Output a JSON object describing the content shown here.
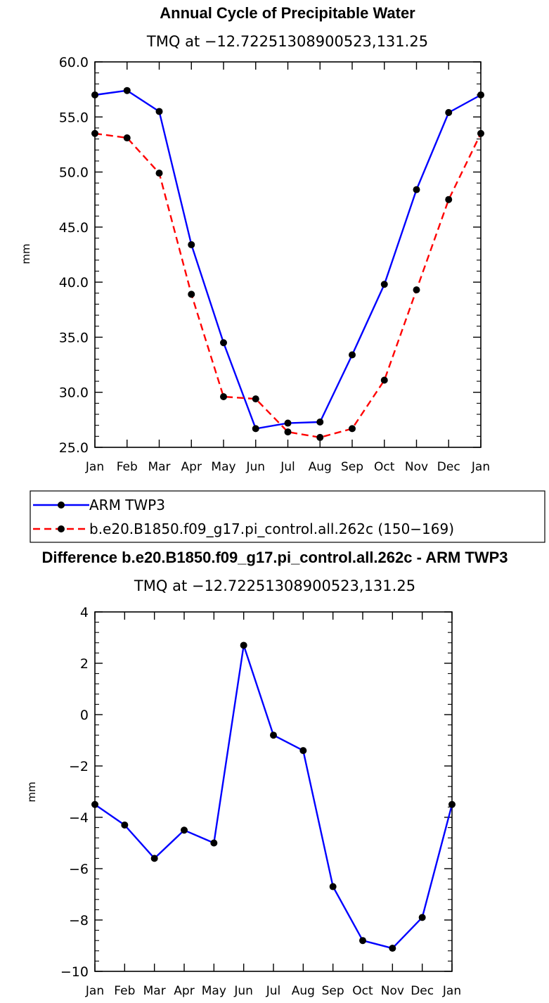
{
  "chart_data": [
    {
      "type": "line",
      "title": "Annual Cycle of Precipitable Water",
      "subtitle": "TMQ at −12.72251308900523,131.25",
      "xlabel": "",
      "ylabel": "mm",
      "categories": [
        "Jan",
        "Feb",
        "Mar",
        "Apr",
        "May",
        "Jun",
        "Jul",
        "Aug",
        "Sep",
        "Oct",
        "Nov",
        "Dec",
        "Jan"
      ],
      "ylim": [
        25,
        60
      ],
      "yticks": [
        "25.0",
        "30.0",
        "35.0",
        "40.0",
        "45.0",
        "50.0",
        "55.0",
        "60.0"
      ],
      "series": [
        {
          "name": "ARM TWP3",
          "color": "#0000ff",
          "dash": "solid",
          "values": [
            57.0,
            57.4,
            55.5,
            43.4,
            34.5,
            26.7,
            27.2,
            27.3,
            33.4,
            39.8,
            48.4,
            55.4,
            57.0
          ]
        },
        {
          "name": "b.e20.B1850.f09_g17.pi_control.all.262c (150−169)",
          "color": "#ff0000",
          "dash": "dashed",
          "values": [
            53.5,
            53.1,
            49.9,
            38.9,
            29.6,
            29.4,
            26.4,
            25.9,
            26.7,
            31.1,
            39.3,
            47.5,
            53.5
          ]
        }
      ],
      "legend_position": "below"
    },
    {
      "type": "line",
      "title": "Difference b.e20.B1850.f09_g17.pi_control.all.262c - ARM TWP3",
      "subtitle": "TMQ at −12.72251308900523,131.25",
      "xlabel": "",
      "ylabel": "mm",
      "categories": [
        "Jan",
        "Feb",
        "Mar",
        "Apr",
        "May",
        "Jun",
        "Jul",
        "Aug",
        "Sep",
        "Oct",
        "Nov",
        "Dec",
        "Jan"
      ],
      "ylim": [
        -10,
        4
      ],
      "yticks": [
        "−10",
        "−8",
        "−6",
        "−4",
        "−2",
        "0",
        "2",
        "4"
      ],
      "series": [
        {
          "name": "Difference",
          "color": "#0000ff",
          "dash": "solid",
          "values": [
            -3.5,
            -4.3,
            -5.6,
            -4.5,
            -5.0,
            2.7,
            -0.8,
            -1.4,
            -6.7,
            -8.8,
            -9.1,
            -7.9,
            -3.5
          ]
        }
      ]
    }
  ]
}
